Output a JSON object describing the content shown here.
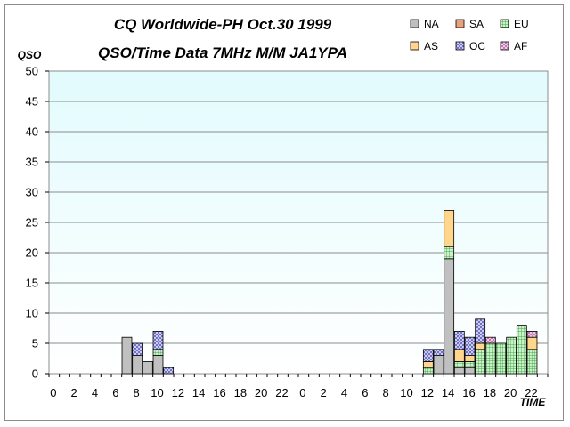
{
  "chart_data": {
    "type": "bar",
    "stacked": true,
    "title": "CQ Worldwide-PH Oct.30 1999",
    "subtitle": "QSO/Time Data 7MHz  M/M JA1YPA",
    "xlabel": "TIME",
    "ylabel": "QSO",
    "ylim": [
      0,
      50
    ],
    "yticks": [
      0,
      5,
      10,
      15,
      20,
      25,
      30,
      35,
      40,
      45,
      50
    ],
    "grid": true,
    "legend_position": "top-right",
    "categories": [
      0,
      1,
      2,
      3,
      4,
      5,
      6,
      7,
      8,
      9,
      10,
      11,
      12,
      13,
      14,
      15,
      16,
      17,
      18,
      19,
      20,
      21,
      22,
      23,
      0,
      1,
      2,
      3,
      4,
      5,
      6,
      7,
      8,
      9,
      10,
      11,
      12,
      13,
      14,
      15,
      16,
      17,
      18,
      19,
      20,
      21,
      22,
      23
    ],
    "x_tick_labels": [
      "0",
      "2",
      "4",
      "6",
      "8",
      "10",
      "12",
      "14",
      "16",
      "18",
      "20",
      "22",
      "0",
      "2",
      "4",
      "6",
      "8",
      "10",
      "12",
      "14",
      "16",
      "18",
      "20",
      "22"
    ],
    "series": [
      {
        "name": "NA",
        "color": "#c0c0c0",
        "pattern": "none",
        "values": [
          0,
          0,
          0,
          0,
          0,
          0,
          0,
          6,
          3,
          2,
          3,
          0,
          0,
          0,
          0,
          0,
          0,
          0,
          0,
          0,
          0,
          0,
          0,
          0,
          0,
          0,
          0,
          0,
          0,
          0,
          0,
          0,
          0,
          0,
          0,
          0,
          0,
          3,
          19,
          1,
          1,
          0,
          0,
          0,
          0,
          0,
          0,
          0
        ]
      },
      {
        "name": "SA",
        "color": "#e6a27e",
        "pattern": "none",
        "values": [
          0,
          0,
          0,
          0,
          0,
          0,
          0,
          0,
          0,
          0,
          0,
          0,
          0,
          0,
          0,
          0,
          0,
          0,
          0,
          0,
          0,
          0,
          0,
          0,
          0,
          0,
          0,
          0,
          0,
          0,
          0,
          0,
          0,
          0,
          0,
          0,
          0,
          0,
          0,
          0,
          0,
          0,
          0,
          0,
          0,
          0,
          0,
          0
        ]
      },
      {
        "name": "EU",
        "color": "#c0f0c0",
        "pattern": "grid",
        "values": [
          0,
          0,
          0,
          0,
          0,
          0,
          0,
          0,
          0,
          0,
          1,
          0,
          0,
          0,
          0,
          0,
          0,
          0,
          0,
          0,
          0,
          0,
          0,
          0,
          0,
          0,
          0,
          0,
          0,
          0,
          0,
          0,
          0,
          0,
          0,
          0,
          1,
          0,
          2,
          1,
          1,
          4,
          5,
          5,
          6,
          8,
          4,
          0
        ]
      },
      {
        "name": "AS",
        "color": "#ffd68c",
        "pattern": "none",
        "values": [
          0,
          0,
          0,
          0,
          0,
          0,
          0,
          0,
          0,
          0,
          0,
          0,
          0,
          0,
          0,
          0,
          0,
          0,
          0,
          0,
          0,
          0,
          0,
          0,
          0,
          0,
          0,
          0,
          0,
          0,
          0,
          0,
          0,
          0,
          0,
          0,
          1,
          0,
          6,
          2,
          1,
          1,
          0,
          0,
          0,
          0,
          2,
          0
        ]
      },
      {
        "name": "OC",
        "color": "#c0c0f0",
        "pattern": "diag",
        "values": [
          0,
          0,
          0,
          0,
          0,
          0,
          0,
          0,
          2,
          0,
          3,
          1,
          0,
          0,
          0,
          0,
          0,
          0,
          0,
          0,
          0,
          0,
          0,
          0,
          0,
          0,
          0,
          0,
          0,
          0,
          0,
          0,
          0,
          0,
          0,
          0,
          2,
          1,
          0,
          3,
          3,
          4,
          0,
          0,
          0,
          0,
          0,
          0
        ]
      },
      {
        "name": "AF",
        "color": "#f0c0e6",
        "pattern": "diag",
        "values": [
          0,
          0,
          0,
          0,
          0,
          0,
          0,
          0,
          0,
          0,
          0,
          0,
          0,
          0,
          0,
          0,
          0,
          0,
          0,
          0,
          0,
          0,
          0,
          0,
          0,
          0,
          0,
          0,
          0,
          0,
          0,
          0,
          0,
          0,
          0,
          0,
          0,
          0,
          0,
          0,
          0,
          0,
          1,
          0,
          0,
          0,
          1,
          0
        ]
      }
    ]
  }
}
